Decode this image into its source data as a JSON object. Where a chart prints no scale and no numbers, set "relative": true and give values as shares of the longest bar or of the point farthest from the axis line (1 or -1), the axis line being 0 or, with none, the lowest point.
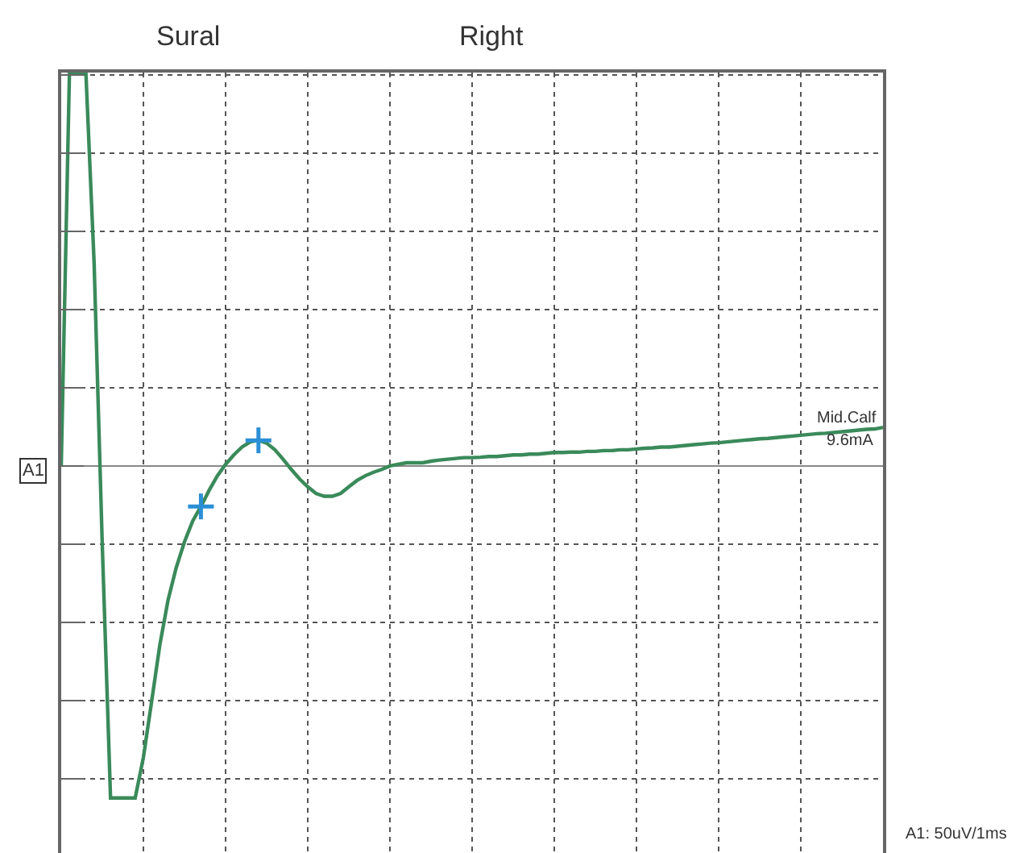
{
  "chart_data": {
    "type": "line",
    "relative": true,
    "tick_labels": false,
    "grid": true,
    "legend": false,
    "marker": "none",
    "line_style": "solid",
    "annotations": [
      "Sural",
      "Right",
      "A1",
      "Mid.Calf",
      "9.6mA",
      "A1: 50uV/1ms"
    ],
    "categories": [
      null,
      null,
      null,
      null,
      null,
      null,
      null,
      null,
      null,
      null,
      null,
      null,
      null,
      null,
      null,
      null,
      null,
      null,
      null,
      null,
      null,
      null,
      null,
      null,
      null,
      null,
      null,
      null,
      null,
      null,
      null,
      null,
      null,
      null,
      null,
      null,
      null,
      null,
      null,
      null,
      null,
      null,
      null,
      null,
      null,
      null,
      null,
      null,
      null,
      null,
      null,
      null,
      null,
      null,
      null,
      null,
      null,
      null,
      null,
      null,
      null,
      null,
      null,
      null,
      null,
      null,
      null,
      null,
      null,
      null,
      null,
      null,
      null,
      null,
      null,
      null,
      null,
      null,
      null,
      null,
      null,
      null,
      null,
      null,
      null,
      null,
      null,
      null,
      null,
      null,
      null,
      null,
      null,
      null,
      null,
      null,
      null,
      null,
      null,
      null,
      null
    ],
    "series": [
      {
        "color": "#3a8a5a",
        "values": [
          0,
          1,
          1,
          1,
          0.517,
          -0.204,
          -0.844,
          -0.844,
          -0.844,
          -0.844,
          -0.741,
          -0.599,
          -0.455,
          -0.341,
          -0.258,
          -0.193,
          -0.14,
          -0.103,
          -0.062,
          -0.025,
          0.004,
          0.028,
          0.048,
          0.061,
          0.065,
          0.058,
          0.041,
          0.017,
          -0.009,
          -0.033,
          -0.053,
          -0.07,
          -0.077,
          -0.077,
          -0.07,
          -0.053,
          -0.037,
          -0.025,
          -0.016,
          -0.009,
          0,
          0.004,
          0.008,
          0.008,
          0.008,
          0.012,
          0.015,
          0.017,
          0.019,
          0.021,
          0.021,
          0.022,
          0.024,
          0.024,
          0.026,
          0.028,
          0.028,
          0.03,
          0.03,
          0.032,
          0.034,
          0.034,
          0.035,
          0.035,
          0.037,
          0.037,
          0.039,
          0.039,
          0.041,
          0.041,
          0.043,
          0.045,
          0.046,
          0.048,
          0.048,
          0.05,
          0.052,
          0.054,
          0.056,
          0.058,
          0.059,
          0.061,
          0.063,
          0.065,
          0.067,
          0.069,
          0.07,
          0.072,
          0.074,
          0.076,
          0.078,
          0.08,
          0.082,
          0.083,
          0.085,
          0.087,
          0.089,
          0.091,
          0.093,
          0.094,
          0.098
        ]
      }
    ]
  }
}
